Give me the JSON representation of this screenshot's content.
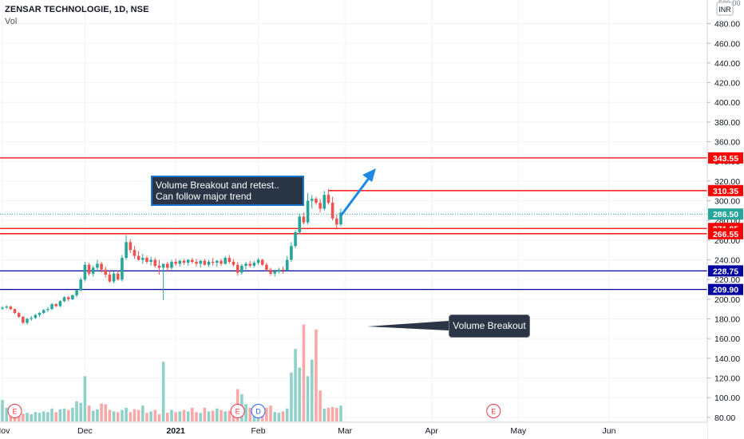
{
  "header": {
    "symbol": "ZENSAR TECHNOLOGIE, 1D, NSE",
    "volume_label": "Vol"
  },
  "annotations": {
    "note_line1": "Volume Breakout and retest..",
    "note_line2": "Can follow major trend",
    "volume_callout": "Volume Breakout"
  },
  "colors": {
    "up": "#26a69a",
    "down": "#ef5350",
    "resistance": "#ff0000",
    "support": "#0000a0",
    "arrow": "#1e88e5",
    "grid": "#f0f3fa"
  },
  "chart_data": {
    "type": "candlestick",
    "title": "ZENSAR TECHNOLOGIE, 1D, NSE",
    "currency_label": "INR",
    "y_top_label": "500.00",
    "ylim": [
      75,
      504
    ],
    "y_ticks": [
      80,
      100,
      120,
      140,
      160,
      180,
      200,
      220,
      240,
      260,
      280,
      300,
      320,
      340,
      360,
      380,
      400,
      420,
      440,
      460,
      480
    ],
    "x_ticks": [
      "Nov",
      "Dec",
      "2021",
      "Feb",
      "Mar",
      "Apr",
      "May",
      "Jun"
    ],
    "x_tick_bars": [
      0,
      20,
      42,
      62,
      83,
      104,
      125,
      147
    ],
    "horizontal_lines": [
      {
        "price": 343.55,
        "label": "343.55",
        "kind": "resistance"
      },
      {
        "price": 310.35,
        "label": "310.35",
        "kind": "resistance",
        "from_bar": 79
      },
      {
        "price": 271.85,
        "label": "271.85",
        "kind": "resistance"
      },
      {
        "price": 266.55,
        "label": "266.55",
        "kind": "resistance"
      },
      {
        "price": 228.75,
        "label": "228.75",
        "kind": "support"
      },
      {
        "price": 209.9,
        "label": "209.90",
        "kind": "support"
      }
    ],
    "last_price": {
      "price": 286.5,
      "label": "286.50"
    },
    "events": [
      {
        "bar": 3,
        "label": "E"
      },
      {
        "bar": 57,
        "label": "E"
      },
      {
        "bar": 62,
        "label": "D"
      },
      {
        "bar": 119,
        "label": "E"
      }
    ],
    "series": [
      {
        "name": "price",
        "ohlc": [
          [
            190.5,
            193,
            189,
            191.5
          ],
          [
            191.5,
            194,
            190,
            192.5
          ],
          [
            192.5,
            193.5,
            189,
            190
          ],
          [
            190,
            190.5,
            185,
            186
          ],
          [
            186,
            187,
            181,
            182
          ],
          [
            182,
            183,
            175,
            176
          ],
          [
            176,
            181,
            174,
            180
          ],
          [
            180,
            183,
            178,
            181
          ],
          [
            181,
            185,
            180,
            184
          ],
          [
            184,
            187,
            182,
            186
          ],
          [
            186,
            190,
            185,
            189
          ],
          [
            189,
            192,
            187,
            190
          ],
          [
            190,
            196,
            189,
            195
          ],
          [
            195,
            196,
            192,
            193
          ],
          [
            193,
            199,
            192,
            198
          ],
          [
            198,
            203,
            197,
            202
          ],
          [
            202,
            203,
            198,
            200
          ],
          [
            200,
            205,
            199,
            204
          ],
          [
            204,
            210,
            202,
            209
          ],
          [
            209,
            222,
            208,
            220
          ],
          [
            220,
            238,
            218,
            235
          ],
          [
            235,
            237,
            224,
            226
          ],
          [
            226,
            234,
            223,
            232
          ],
          [
            232,
            240,
            228,
            236
          ],
          [
            236,
            238,
            227,
            230
          ],
          [
            230,
            233,
            222,
            225
          ],
          [
            225,
            229,
            217,
            218
          ],
          [
            218,
            228,
            216,
            226
          ],
          [
            226,
            229,
            219,
            220
          ],
          [
            220,
            245,
            218,
            242
          ],
          [
            242,
            265,
            240,
            258
          ],
          [
            258,
            261,
            247,
            250
          ],
          [
            250,
            254,
            241,
            244
          ],
          [
            244,
            249,
            239,
            240
          ],
          [
            240,
            246,
            236,
            242
          ],
          [
            242,
            244,
            236,
            238
          ],
          [
            238,
            243,
            234,
            240
          ],
          [
            240,
            242,
            232,
            234
          ],
          [
            234,
            240,
            225,
            232
          ],
          [
            232,
            236,
            199,
            236
          ],
          [
            236,
            238,
            228,
            232
          ],
          [
            232,
            240,
            230,
            238
          ],
          [
            238,
            241,
            234,
            236
          ],
          [
            236,
            240,
            233,
            239
          ],
          [
            239,
            241,
            235,
            237
          ],
          [
            237,
            241,
            234,
            240
          ],
          [
            240,
            242,
            236,
            238
          ],
          [
            238,
            241,
            233,
            236
          ],
          [
            236,
            240,
            232,
            239
          ],
          [
            239,
            241,
            234,
            235
          ],
          [
            235,
            240,
            233,
            238
          ],
          [
            238,
            242,
            234,
            237
          ],
          [
            237,
            240,
            233,
            239
          ],
          [
            239,
            241,
            234,
            236
          ],
          [
            236,
            244,
            235,
            242
          ],
          [
            242,
            245,
            236,
            238
          ],
          [
            238,
            241,
            233,
            235
          ],
          [
            235,
            238,
            224,
            227
          ],
          [
            227,
            236,
            225,
            234
          ],
          [
            234,
            238,
            230,
            236
          ],
          [
            236,
            239,
            232,
            234
          ],
          [
            234,
            239,
            232,
            237
          ],
          [
            237,
            242,
            235,
            240
          ],
          [
            240,
            241,
            234,
            235
          ],
          [
            235,
            237,
            228,
            230
          ],
          [
            230,
            232,
            224,
            226
          ],
          [
            226,
            230,
            223,
            228
          ],
          [
            228,
            232,
            226,
            230
          ],
          [
            230,
            233,
            226,
            229
          ],
          [
            229,
            244,
            228,
            240
          ],
          [
            240,
            258,
            238,
            254
          ],
          [
            254,
            270,
            252,
            268
          ],
          [
            268,
            287,
            266,
            284
          ],
          [
            284,
            288,
            276,
            278
          ],
          [
            278,
            308,
            276,
            300
          ],
          [
            300,
            306,
            292,
            302
          ],
          [
            302,
            304,
            296,
            298
          ],
          [
            298,
            302,
            288,
            292
          ],
          [
            292,
            310,
            290,
            306
          ],
          [
            306,
            312,
            296,
            298
          ],
          [
            298,
            304,
            280,
            282
          ],
          [
            282,
            286,
            272,
            276
          ],
          [
            276,
            292,
            274,
            288
          ]
        ]
      },
      {
        "name": "volume",
        "values": [
          30,
          19,
          13,
          11,
          9,
          11,
          12,
          10,
          13,
          12,
          14,
          13,
          18,
          13,
          17,
          18,
          16,
          19,
          28,
          26,
          63,
          22,
          15,
          17,
          25,
          24,
          16,
          14,
          13,
          16,
          19,
          13,
          17,
          16,
          22,
          12,
          14,
          16,
          10,
          83,
          12,
          16,
          13,
          14,
          16,
          14,
          19,
          13,
          12,
          19,
          14,
          15,
          18,
          16,
          14,
          15,
          21,
          45,
          38,
          24,
          19,
          14,
          18,
          16,
          19,
          22,
          13,
          12,
          14,
          18,
          68,
          101,
          75,
          135,
          63,
          86,
          128,
          43,
          18,
          19,
          20,
          19,
          22
        ]
      }
    ]
  }
}
